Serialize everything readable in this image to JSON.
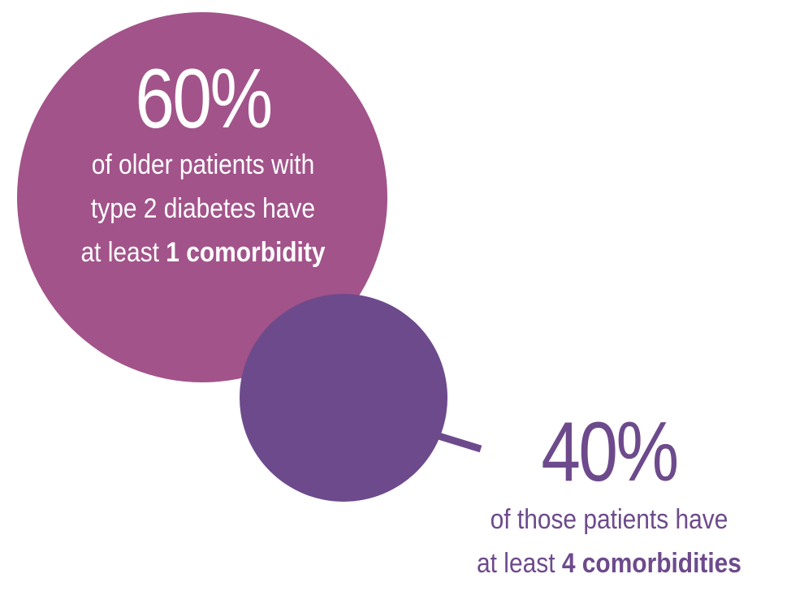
{
  "colors": {
    "large_circle": "#a2538a",
    "small_circle": "#6d4a8c",
    "connector": "#6d4a8c",
    "stat2_text": "#6d4a8c",
    "stat1_text": "#ffffff"
  },
  "stat1": {
    "value": "60%",
    "line1": "of older patients with",
    "line2": "type 2 diabetes have",
    "line3_prefix": "at least ",
    "line3_bold": "1 comorbidity"
  },
  "stat2": {
    "value": "40%",
    "line1": "of those patients have",
    "line2_prefix": "at least ",
    "line2_bold": "4 comorbidities"
  }
}
